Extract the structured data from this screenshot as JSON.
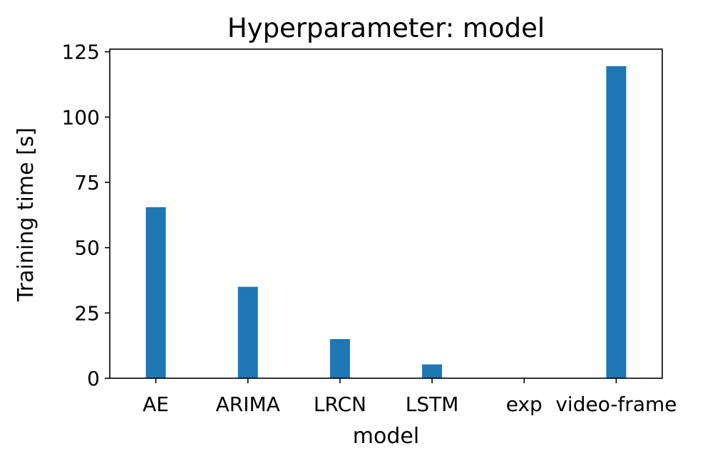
{
  "chart_data": {
    "type": "bar",
    "title": "Hyperparameter: model",
    "xlabel": "model",
    "ylabel": "Training time [s]",
    "categories": [
      "AE",
      "ARIMA",
      "LRCN",
      "LSTM",
      "exp",
      "video-frame"
    ],
    "values": [
      65.5,
      35,
      15,
      5.3,
      0,
      119.5
    ],
    "ylim": [
      0,
      126
    ],
    "yticks": [
      0,
      25,
      50,
      75,
      100,
      125
    ],
    "grid": false,
    "bar_color": "#1f77b4"
  }
}
